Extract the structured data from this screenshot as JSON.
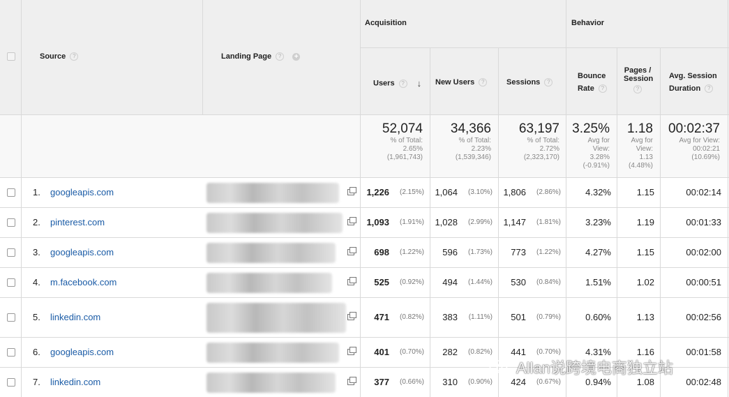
{
  "header": {
    "source": "Source",
    "landing_page": "Landing Page",
    "group_acquisition": "Acquisition",
    "group_behavior": "Behavior",
    "users": "Users",
    "new_users": "New Users",
    "sessions": "Sessions",
    "bounce_rate_1": "Bounce",
    "bounce_rate_2": "Rate",
    "pages_session_1": "Pages /",
    "pages_session_2": "Session",
    "avg_session_1": "Avg. Session",
    "avg_session_2": "Duration",
    "help_glyph": "?",
    "add_glyph": "+",
    "sort_glyph": "↓"
  },
  "totals": {
    "users": {
      "value": "52,074",
      "l1": "% of Total:",
      "l2": "2.65%",
      "l3": "(1,961,743)"
    },
    "new_users": {
      "value": "34,366",
      "l1": "% of Total:",
      "l2": "2.23%",
      "l3": "(1,539,346)"
    },
    "sessions": {
      "value": "63,197",
      "l1": "% of Total:",
      "l2": "2.72%",
      "l3": "(2,323,170)"
    },
    "bounce": {
      "value": "3.25%",
      "l1": "Avg for",
      "l2": "View:",
      "l3": "3.28%",
      "l4": "(-0.91%)"
    },
    "pages": {
      "value": "1.18",
      "l1": "Avg for",
      "l2": "View:",
      "l3": "1.13",
      "l4": "(4.48%)"
    },
    "duration": {
      "value": "00:02:37",
      "l1": "Avg for View:",
      "l2": "00:02:21",
      "l3": "(10.69%)"
    }
  },
  "rows": [
    {
      "num": "1.",
      "source": "googleapis.com",
      "users": "1,226",
      "users_pct": "(2.15%)",
      "new_users": "1,064",
      "new_users_pct": "(3.10%)",
      "sessions": "1,806",
      "sessions_pct": "(2.86%)",
      "bounce": "4.32%",
      "pages": "1.15",
      "duration": "00:02:14"
    },
    {
      "num": "2.",
      "source": "pinterest.com",
      "users": "1,093",
      "users_pct": "(1.91%)",
      "new_users": "1,028",
      "new_users_pct": "(2.99%)",
      "sessions": "1,147",
      "sessions_pct": "(1.81%)",
      "bounce": "3.23%",
      "pages": "1.19",
      "duration": "00:01:33"
    },
    {
      "num": "3.",
      "source": "googleapis.com",
      "users": "698",
      "users_pct": "(1.22%)",
      "new_users": "596",
      "new_users_pct": "(1.73%)",
      "sessions": "773",
      "sessions_pct": "(1.22%)",
      "bounce": "4.27%",
      "pages": "1.15",
      "duration": "00:02:00"
    },
    {
      "num": "4.",
      "source": "m.facebook.com",
      "users": "525",
      "users_pct": "(0.92%)",
      "new_users": "494",
      "new_users_pct": "(1.44%)",
      "sessions": "530",
      "sessions_pct": "(0.84%)",
      "bounce": "1.51%",
      "pages": "1.02",
      "duration": "00:00:51"
    },
    {
      "num": "5.",
      "source": "linkedin.com",
      "users": "471",
      "users_pct": "(0.82%)",
      "new_users": "383",
      "new_users_pct": "(1.11%)",
      "sessions": "501",
      "sessions_pct": "(0.79%)",
      "bounce": "0.60%",
      "pages": "1.13",
      "duration": "00:02:56"
    },
    {
      "num": "6.",
      "source": "googleapis.com",
      "users": "401",
      "users_pct": "(0.70%)",
      "new_users": "282",
      "new_users_pct": "(0.82%)",
      "sessions": "441",
      "sessions_pct": "(0.70%)",
      "bounce": "4.31%",
      "pages": "1.16",
      "duration": "00:01:58"
    },
    {
      "num": "7.",
      "source": "linkedin.com",
      "users": "377",
      "users_pct": "(0.66%)",
      "new_users": "310",
      "new_users_pct": "(0.90%)",
      "sessions": "424",
      "sessions_pct": "(0.67%)",
      "bounce": "0.94%",
      "pages": "1.08",
      "duration": "00:02:48"
    }
  ],
  "watermark": "Allan说跨境电商独立站",
  "colors": {
    "link": "#1a5ba6",
    "header_bg": "#efefef",
    "border": "#d9d9d9"
  }
}
